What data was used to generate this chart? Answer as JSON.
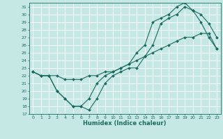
{
  "xlabel": "Humidex (Indice chaleur)",
  "bg_color": "#c5e8e5",
  "line_color": "#1a6b5e",
  "grid_color": "#ffffff",
  "xlim": [
    -0.5,
    23.5
  ],
  "ylim": [
    17,
    31.5
  ],
  "yticks": [
    17,
    18,
    19,
    20,
    21,
    22,
    23,
    24,
    25,
    26,
    27,
    28,
    29,
    30,
    31
  ],
  "xticks": [
    0,
    1,
    2,
    3,
    4,
    5,
    6,
    7,
    8,
    9,
    10,
    11,
    12,
    13,
    14,
    15,
    16,
    17,
    18,
    19,
    20,
    21,
    22,
    23
  ],
  "line1_x": [
    0,
    1,
    2,
    3,
    4,
    5,
    6,
    7,
    8,
    9,
    10,
    11,
    12,
    13,
    14,
    15,
    16,
    17,
    18,
    19,
    20,
    21,
    22,
    23
  ],
  "line1_y": [
    22.5,
    22.0,
    22.0,
    20.0,
    19.0,
    18.0,
    18.0,
    17.5,
    19.0,
    21.0,
    22.0,
    22.5,
    23.0,
    23.0,
    24.5,
    26.0,
    28.8,
    29.5,
    30.0,
    31.0,
    30.5,
    30.0,
    28.8,
    27.0
  ],
  "line2_x": [
    0,
    1,
    2,
    3,
    4,
    5,
    6,
    7,
    8,
    9,
    10,
    11,
    12,
    13,
    14,
    15,
    16,
    17,
    18,
    19,
    20,
    21,
    22,
    23
  ],
  "line2_y": [
    22.5,
    22.0,
    22.0,
    20.0,
    19.0,
    18.0,
    18.0,
    19.0,
    21.0,
    22.0,
    22.5,
    23.0,
    23.5,
    25.0,
    26.0,
    29.0,
    29.5,
    30.0,
    31.0,
    31.5,
    30.5,
    29.0,
    27.0,
    25.5
  ],
  "line3_x": [
    0,
    1,
    2,
    3,
    4,
    5,
    6,
    7,
    8,
    9,
    10,
    11,
    12,
    13,
    14,
    15,
    16,
    17,
    18,
    19,
    20,
    21,
    22,
    23
  ],
  "line3_y": [
    22.5,
    22.0,
    22.0,
    22.0,
    21.5,
    21.5,
    21.5,
    22.0,
    22.0,
    22.5,
    22.5,
    23.0,
    23.5,
    24.0,
    24.5,
    25.0,
    25.5,
    26.0,
    26.5,
    27.0,
    27.0,
    27.5,
    27.5,
    25.5
  ]
}
